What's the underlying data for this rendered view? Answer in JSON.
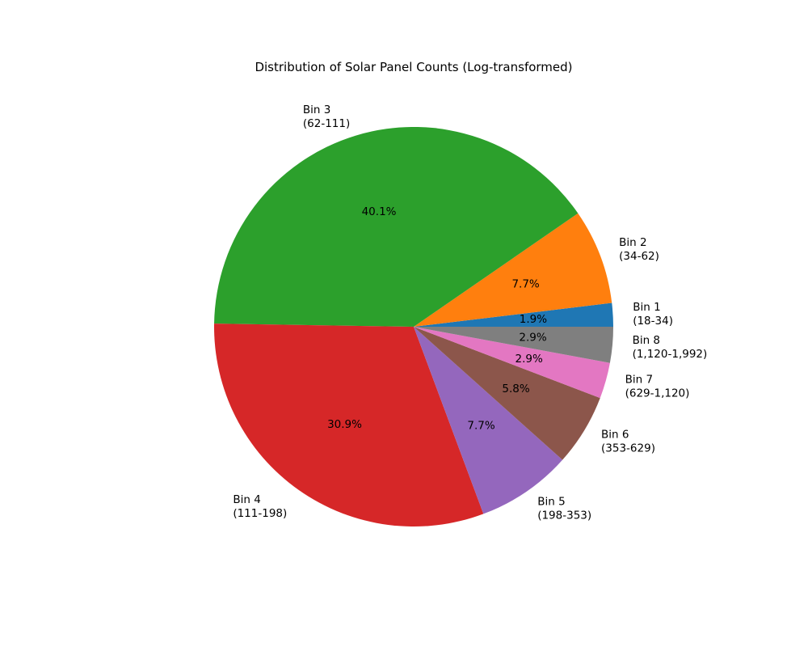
{
  "chart_data": {
    "type": "pie",
    "title": "Distribution of Solar Panel Counts (Log-transformed)",
    "start_angle_deg": 0,
    "direction": "counterclockwise",
    "slices": [
      {
        "label": "Bin 1",
        "range": "(18-34)",
        "value": 1.9,
        "pct_label": "1.9%",
        "color": "#1f77b4"
      },
      {
        "label": "Bin 2",
        "range": "(34-62)",
        "value": 7.7,
        "pct_label": "7.7%",
        "color": "#ff7f0e"
      },
      {
        "label": "Bin 3",
        "range": "(62-111)",
        "value": 40.1,
        "pct_label": "40.1%",
        "color": "#2ca02c"
      },
      {
        "label": "Bin 4",
        "range": "(111-198)",
        "value": 30.9,
        "pct_label": "30.9%",
        "color": "#d62728"
      },
      {
        "label": "Bin 5",
        "range": "(198-353)",
        "value": 7.7,
        "pct_label": "7.7%",
        "color": "#9467bd"
      },
      {
        "label": "Bin 6",
        "range": "(353-629)",
        "value": 5.8,
        "pct_label": "5.8%",
        "color": "#8c564b"
      },
      {
        "label": "Bin 7",
        "range": "(629-1,120)",
        "value": 2.9,
        "pct_label": "2.9%",
        "color": "#e377c2"
      },
      {
        "label": "Bin 8",
        "range": "(1,120-1,992)",
        "value": 2.9,
        "pct_label": "2.9%",
        "color": "#7f7f7f"
      }
    ]
  }
}
